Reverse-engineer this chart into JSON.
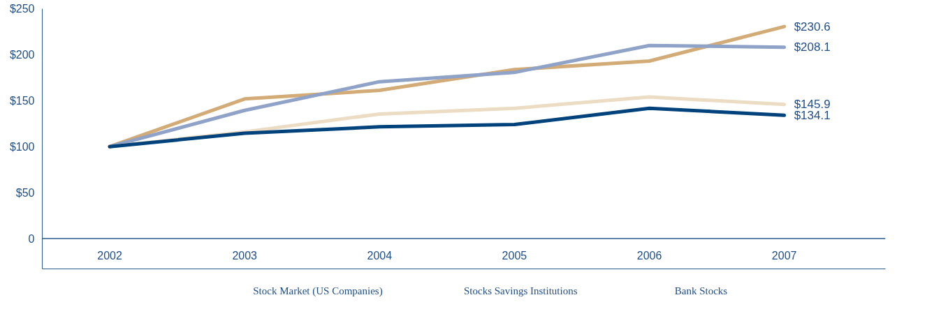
{
  "chart_data": {
    "type": "line",
    "categories": [
      "2002",
      "2003",
      "2004",
      "2005",
      "2006",
      "2007"
    ],
    "series": [
      {
        "color": "#d2ab76",
        "values": [
          100,
          151.9,
          161.2,
          183.8,
          193.1,
          230.6
        ],
        "value_labels": [
          null,
          null,
          null,
          null,
          null,
          "$230.6"
        ]
      },
      {
        "color": "#8fa2c8",
        "values": [
          100,
          139.4,
          170.6,
          180.7,
          210,
          208.1
        ],
        "value_labels": [
          null,
          null,
          null,
          null,
          null,
          "$208.1"
        ]
      },
      {
        "color": "#ecdcc3",
        "values": [
          100,
          116,
          135.5,
          141.7,
          154,
          145.9
        ],
        "value_labels": [
          null,
          null,
          null,
          null,
          null,
          "$145.9"
        ]
      },
      {
        "color": "#00427c",
        "values": [
          100,
          114.5,
          121.5,
          124,
          141.7,
          134.1
        ],
        "value_labels": [
          null,
          null,
          null,
          null,
          null,
          "$134.1"
        ]
      }
    ],
    "ylim": [
      -33,
      250
    ],
    "yticks": [
      {
        "value": 0,
        "label": "0"
      },
      {
        "value": 50,
        "label": "$50"
      },
      {
        "value": 100,
        "label": "$100"
      },
      {
        "value": 150,
        "label": "$150"
      },
      {
        "value": 200,
        "label": "$200"
      },
      {
        "value": 250,
        "label": "$250"
      }
    ],
    "ref_lines": [
      {
        "axis": "y",
        "value": 0,
        "label": null,
        "color": "#2a5b8f"
      }
    ],
    "grid": false,
    "marker": "none",
    "line_style": "solid",
    "annotations": [
      "Stock Market (US Companies)",
      "Stocks Savings Institutions",
      "Bank Stocks"
    ]
  }
}
